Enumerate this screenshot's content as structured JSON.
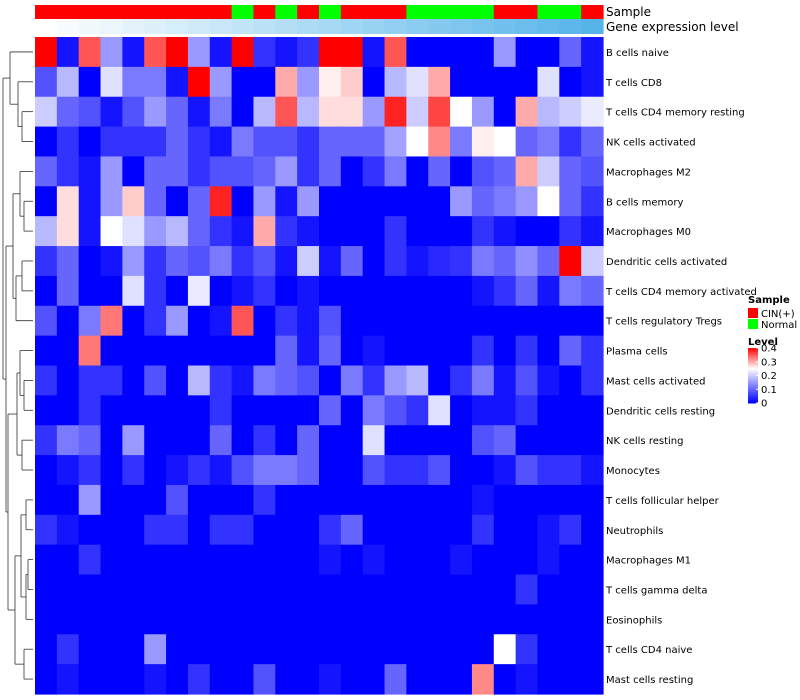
{
  "chart_data": {
    "type": "heatmap",
    "title": "",
    "annotation_tracks": [
      {
        "name": "Sample",
        "values": [
          "CIN(+)",
          "CIN(+)",
          "CIN(+)",
          "CIN(+)",
          "CIN(+)",
          "CIN(+)",
          "CIN(+)",
          "CIN(+)",
          "CIN(+)",
          "Normal",
          "CIN(+)",
          "Normal",
          "CIN(+)",
          "Normal",
          "CIN(+)",
          "CIN(+)",
          "CIN(+)",
          "Normal",
          "Normal",
          "Normal",
          "Normal",
          "CIN(+)",
          "CIN(+)",
          "Normal",
          "Normal",
          "CIN(+)"
        ]
      },
      {
        "name": "Gene expression level",
        "gradient_from": "#ffffff",
        "gradient_to": "#56b4e9"
      }
    ],
    "rows": [
      "B cells naive",
      "T cells CD8",
      "T cells CD4 memory resting",
      "NK cells activated",
      "Macrophages M2",
      "B cells memory",
      "Macrophages M0",
      "Dendritic cells activated",
      "T cells CD4 memory activated",
      "T cells regulatory  Tregs",
      "Plasma cells",
      "Mast cells activated",
      "Dendritic cells resting",
      "NK cells resting",
      "Monocytes",
      "T cells follicular helper",
      "Neutrophils",
      "Macrophages M1",
      "T cells gamma delta",
      "Eosinophils",
      "T cells CD4 naive",
      "Mast cells resting"
    ],
    "values": [
      [
        0.4,
        0.02,
        0.35,
        0.15,
        0.02,
        0.35,
        0.4,
        0.15,
        0.02,
        0.4,
        0.05,
        0.02,
        0.05,
        0.4,
        0.4,
        0.02,
        0.35,
        0.0,
        0.0,
        0.0,
        0.0,
        0.15,
        0.0,
        0.0,
        0.1,
        0.02
      ],
      [
        0.08,
        0.18,
        0.0,
        0.22,
        0.12,
        0.12,
        0.02,
        0.4,
        0.15,
        0.0,
        0.0,
        0.3,
        0.15,
        0.26,
        0.28,
        0.0,
        0.18,
        0.22,
        0.3,
        0.0,
        0.0,
        0.0,
        0.0,
        0.22,
        0.0,
        0.02
      ],
      [
        0.2,
        0.1,
        0.08,
        0.02,
        0.08,
        0.15,
        0.1,
        0.02,
        0.12,
        0.0,
        0.18,
        0.35,
        0.18,
        0.27,
        0.27,
        0.15,
        0.38,
        0.2,
        0.36,
        0.25,
        0.15,
        0.0,
        0.3,
        0.18,
        0.2,
        0.23
      ],
      [
        0.0,
        0.05,
        0.0,
        0.05,
        0.05,
        0.05,
        0.1,
        0.05,
        0.02,
        0.12,
        0.08,
        0.08,
        0.05,
        0.1,
        0.1,
        0.1,
        0.16,
        0.25,
        0.32,
        0.12,
        0.26,
        0.25,
        0.1,
        0.12,
        0.05,
        0.1
      ],
      [
        0.1,
        0.05,
        0.02,
        0.15,
        0.0,
        0.1,
        0.1,
        0.05,
        0.08,
        0.08,
        0.1,
        0.15,
        0.05,
        0.1,
        0.0,
        0.05,
        0.12,
        0.0,
        0.1,
        0.0,
        0.08,
        0.1,
        0.3,
        0.2,
        0.1,
        0.08
      ],
      [
        0.0,
        0.27,
        0.02,
        0.15,
        0.28,
        0.1,
        0.0,
        0.1,
        0.38,
        0.0,
        0.15,
        0.02,
        0.15,
        0.0,
        0.0,
        0.0,
        0.0,
        0.0,
        0.0,
        0.15,
        0.1,
        0.12,
        0.15,
        0.25,
        0.1,
        0.05
      ],
      [
        0.18,
        0.27,
        0.02,
        0.25,
        0.22,
        0.15,
        0.18,
        0.1,
        0.05,
        0.02,
        0.3,
        0.05,
        0.02,
        0.0,
        0.0,
        0.0,
        0.05,
        0.0,
        0.0,
        0.0,
        0.05,
        0.02,
        0.0,
        0.0,
        0.05,
        0.02
      ],
      [
        0.05,
        0.1,
        0.0,
        0.02,
        0.15,
        0.05,
        0.1,
        0.08,
        0.12,
        0.05,
        0.08,
        0.02,
        0.2,
        0.02,
        0.1,
        0.0,
        0.05,
        0.02,
        0.04,
        0.05,
        0.12,
        0.1,
        0.14,
        0.1,
        0.4,
        0.2
      ],
      [
        0.0,
        0.1,
        0.0,
        0.0,
        0.22,
        0.05,
        0.0,
        0.23,
        0.0,
        0.02,
        0.05,
        0.0,
        0.02,
        0.0,
        0.0,
        0.0,
        0.0,
        0.0,
        0.0,
        0.0,
        0.02,
        0.05,
        0.1,
        0.02,
        0.12,
        0.1
      ],
      [
        0.08,
        0.0,
        0.12,
        0.33,
        0.0,
        0.05,
        0.15,
        0.0,
        0.02,
        0.35,
        0.0,
        0.05,
        0.02,
        0.08,
        0.0,
        0.0,
        0.0,
        0.0,
        0.0,
        0.0,
        0.0,
        0.0,
        0.0,
        0.0,
        0.0,
        0.0
      ],
      [
        0.0,
        0.0,
        0.33,
        0.0,
        0.0,
        0.0,
        0.0,
        0.0,
        0.0,
        0.0,
        0.0,
        0.1,
        0.02,
        0.1,
        0.0,
        0.02,
        0.0,
        0.0,
        0.0,
        0.0,
        0.05,
        0.0,
        0.05,
        0.0,
        0.1,
        0.05
      ],
      [
        0.05,
        0.0,
        0.05,
        0.05,
        0.0,
        0.08,
        0.0,
        0.18,
        0.05,
        0.02,
        0.12,
        0.1,
        0.08,
        0.0,
        0.12,
        0.05,
        0.15,
        0.18,
        0.0,
        0.05,
        0.12,
        0.02,
        0.08,
        0.02,
        0.0,
        0.05
      ],
      [
        0.0,
        0.0,
        0.05,
        0.0,
        0.0,
        0.0,
        0.0,
        0.0,
        0.05,
        0.0,
        0.0,
        0.0,
        0.0,
        0.1,
        0.0,
        0.12,
        0.08,
        0.05,
        0.22,
        0.0,
        0.02,
        0.02,
        0.05,
        0.0,
        0.0,
        0.0
      ],
      [
        0.05,
        0.12,
        0.1,
        0.0,
        0.15,
        0.0,
        0.0,
        0.0,
        0.1,
        0.0,
        0.05,
        0.0,
        0.1,
        0.0,
        0.0,
        0.22,
        0.0,
        0.0,
        0.0,
        0.0,
        0.08,
        0.1,
        0.0,
        0.0,
        0.0,
        0.0
      ],
      [
        0.0,
        0.02,
        0.05,
        0.0,
        0.05,
        0.0,
        0.02,
        0.05,
        0.02,
        0.08,
        0.12,
        0.12,
        0.1,
        0.0,
        0.0,
        0.08,
        0.05,
        0.05,
        0.08,
        0.0,
        0.0,
        0.02,
        0.08,
        0.05,
        0.05,
        0.02
      ],
      [
        0.0,
        0.0,
        0.15,
        0.0,
        0.0,
        0.0,
        0.08,
        0.0,
        0.0,
        0.0,
        0.05,
        0.0,
        0.0,
        0.0,
        0.0,
        0.0,
        0.0,
        0.0,
        0.0,
        0.0,
        0.02,
        0.0,
        0.0,
        0.0,
        0.0,
        0.0
      ],
      [
        0.05,
        0.02,
        0.0,
        0.0,
        0.0,
        0.05,
        0.05,
        0.0,
        0.05,
        0.05,
        0.0,
        0.0,
        0.0,
        0.05,
        0.1,
        0.0,
        0.0,
        0.0,
        0.0,
        0.0,
        0.05,
        0.0,
        0.0,
        0.02,
        0.05,
        0.0
      ],
      [
        0.0,
        0.0,
        0.05,
        0.0,
        0.0,
        0.0,
        0.0,
        0.0,
        0.0,
        0.0,
        0.0,
        0.0,
        0.0,
        0.02,
        0.0,
        0.02,
        0.0,
        0.0,
        0.0,
        0.02,
        0.0,
        0.0,
        0.0,
        0.02,
        0.0,
        0.0
      ],
      [
        0.0,
        0.0,
        0.0,
        0.0,
        0.0,
        0.0,
        0.0,
        0.0,
        0.0,
        0.0,
        0.0,
        0.0,
        0.0,
        0.0,
        0.0,
        0.0,
        0.0,
        0.0,
        0.0,
        0.0,
        0.0,
        0.0,
        0.05,
        0.0,
        0.0,
        0.0
      ],
      [
        0.0,
        0.0,
        0.0,
        0.0,
        0.0,
        0.0,
        0.0,
        0.0,
        0.0,
        0.0,
        0.0,
        0.0,
        0.0,
        0.0,
        0.0,
        0.0,
        0.0,
        0.0,
        0.0,
        0.0,
        0.0,
        0.0,
        0.0,
        0.0,
        0.0,
        0.0
      ],
      [
        0.0,
        0.05,
        0.0,
        0.0,
        0.0,
        0.15,
        0.0,
        0.0,
        0.0,
        0.0,
        0.0,
        0.0,
        0.0,
        0.0,
        0.0,
        0.0,
        0.0,
        0.0,
        0.0,
        0.0,
        0.0,
        0.25,
        0.05,
        0.0,
        0.0,
        0.0
      ],
      [
        0.0,
        0.02,
        0.0,
        0.0,
        0.0,
        0.02,
        0.0,
        0.05,
        0.0,
        0.0,
        0.08,
        0.0,
        0.0,
        0.02,
        0.0,
        0.0,
        0.1,
        0.0,
        0.0,
        0.0,
        0.32,
        0.0,
        0.02,
        0.0,
        0.0,
        0.0
      ]
    ],
    "color_scale": {
      "min": 0,
      "max": 0.4,
      "low": "#0000ff",
      "mid": "#ffffff",
      "high": "#ff0000",
      "mid_value": 0.25
    },
    "legend": {
      "sample_title": "Sample",
      "sample_entries": [
        {
          "label": "CIN(+)",
          "color": "#ff0000"
        },
        {
          "label": "Normal",
          "color": "#00ff00"
        }
      ],
      "level_title": "Level",
      "level_ticks": [
        "0.4",
        "0.3",
        "0.2",
        "0.1",
        "0"
      ],
      "level_values": [
        0.4,
        0.3,
        0.2,
        0.1,
        0
      ]
    },
    "dendrogram": "rows"
  }
}
